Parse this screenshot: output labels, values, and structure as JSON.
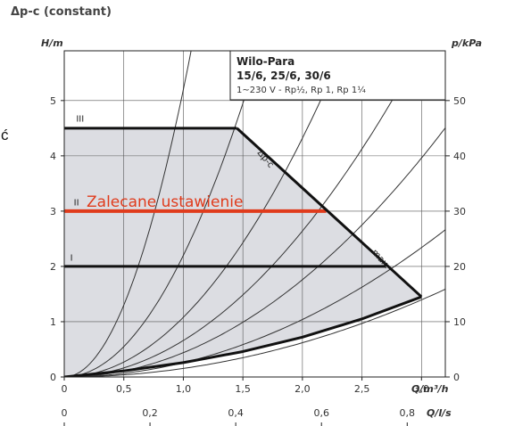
{
  "page": {
    "title": "Δp-c (constant)",
    "side_glyph": "ć"
  },
  "chart_data": {
    "type": "line",
    "title": "Δp-c (constant)",
    "xlabel": "Q/m³/h",
    "xlabel_secondary": "Q/l/s",
    "ylabel_left": "H/m",
    "ylabel_right": "p/kPa",
    "xlim": [
      0,
      3.2
    ],
    "ylim": [
      0,
      5.9
    ],
    "x_ticks": [
      0,
      0.5,
      1.0,
      1.5,
      2.0,
      2.5,
      3.0
    ],
    "x_tick_labels": [
      "0",
      "0,5",
      "1,0",
      "1,5",
      "2,0",
      "2,5",
      "3,0"
    ],
    "x_secondary_ticks": [
      0,
      0.2,
      0.4,
      0.6,
      0.8
    ],
    "x_secondary_tick_labels": [
      "0",
      "0,2",
      "0,4",
      "0,6",
      "0,8"
    ],
    "y_ticks": [
      0,
      1,
      2,
      3,
      4,
      5
    ],
    "y_tick_labels": [
      "0",
      "1",
      "2",
      "3",
      "4",
      "5"
    ],
    "y_right_ticks": [
      0,
      10,
      20,
      30,
      40,
      50
    ],
    "y_right_tick_labels": [
      "0",
      "10",
      "20",
      "30",
      "40",
      "50"
    ],
    "grid": true,
    "info_box": {
      "model": "Wilo-Para",
      "sizes": "15/6, 25/6, 30/6",
      "spec": "1~230 V - Rp½, Rp 1, Rp 1¼"
    },
    "operating_region": {
      "fill": "#dcdde2",
      "points": [
        [
          0,
          4.5
        ],
        [
          1.45,
          4.5
        ],
        [
          3.0,
          1.45
        ],
        [
          2.5,
          1.05
        ],
        [
          2.0,
          0.72
        ],
        [
          1.5,
          0.46
        ],
        [
          1.0,
          0.26
        ],
        [
          0.5,
          0.11
        ],
        [
          0,
          0
        ]
      ]
    },
    "series": [
      {
        "name": "III",
        "points": [
          [
            0,
            4.5
          ],
          [
            1.45,
            4.5
          ]
        ],
        "color": "#111111",
        "width": 3
      },
      {
        "name": "II",
        "points": [
          [
            0,
            3.0
          ],
          [
            2.2,
            3.0
          ]
        ],
        "color": "#e03b1c",
        "width": 4
      },
      {
        "name": "I",
        "points": [
          [
            0,
            2.0
          ],
          [
            2.7,
            2.0
          ]
        ],
        "color": "#111111",
        "width": 3
      },
      {
        "name": "Δp-c",
        "points": [
          [
            1.45,
            4.5
          ],
          [
            3.0,
            1.45
          ]
        ],
        "color": "#111111",
        "width": 3
      },
      {
        "name": "",
        "points": [
          [
            0,
            0
          ],
          [
            0.5,
            0.11
          ],
          [
            1.0,
            0.26
          ],
          [
            1.5,
            0.46
          ],
          [
            2.0,
            0.72
          ],
          [
            2.5,
            1.05
          ],
          [
            3.0,
            1.45
          ]
        ],
        "color": "#111111",
        "width": 3
      }
    ],
    "system_curves_k": [
      5.2,
      2.2,
      1.08,
      0.66,
      0.44,
      0.26,
      0.155
    ],
    "annotations": [
      {
        "text": "III",
        "x": 0.1,
        "y": 4.62
      },
      {
        "text": "II",
        "x": 0.08,
        "y": 3.1
      },
      {
        "text": "I",
        "x": 0.05,
        "y": 2.1
      },
      {
        "text": "Δp-c",
        "x": 1.62,
        "y": 4.05,
        "rotate": 50
      },
      {
        "text": "max.",
        "x": 2.58,
        "y": 2.25,
        "rotate": 48
      }
    ],
    "recommended_label": "Zalecane ustawienie",
    "recommended_color": "#e03b1c"
  }
}
